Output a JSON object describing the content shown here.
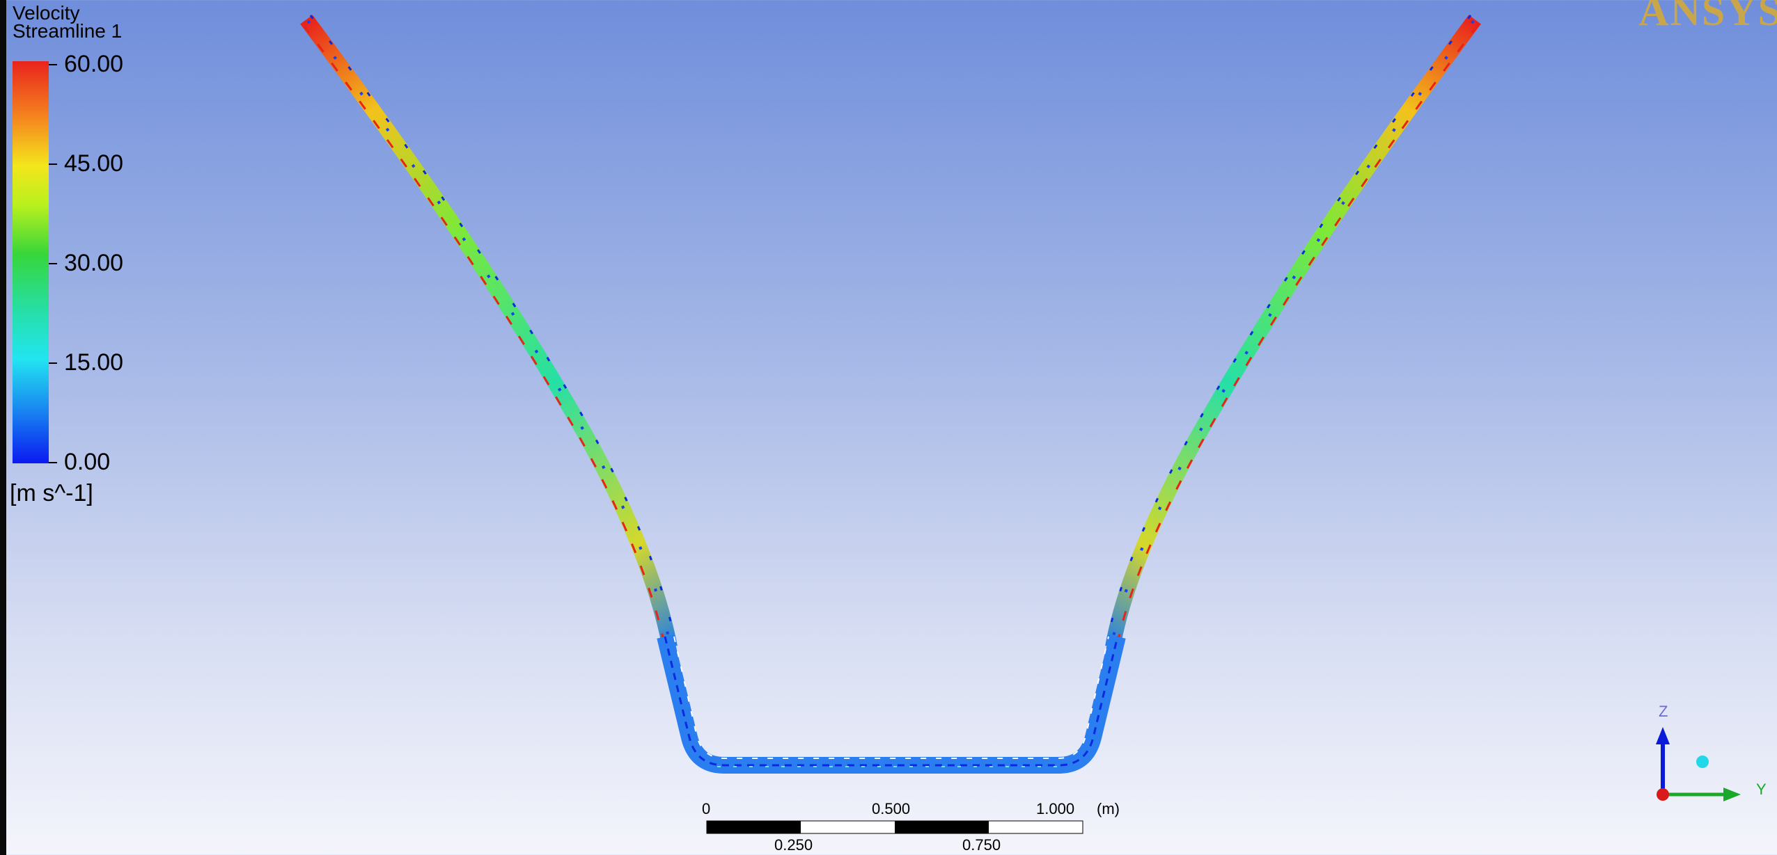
{
  "legend": {
    "title_line1": "Velocity",
    "title_line2": "Streamline 1",
    "ticks": [
      "60.00",
      "45.00",
      "30.00",
      "15.00",
      "0.00"
    ],
    "units": "[m s^-1]"
  },
  "logo": "ANSYS",
  "scale_bar": {
    "top_labels": [
      "0",
      "0.500",
      "1.000",
      "(m)"
    ],
    "bottom_labels": [
      "0.250",
      "0.750"
    ]
  },
  "triad": {
    "axis_z": "Z",
    "axis_y": "Y"
  },
  "colors": {
    "background_top": "#6f8edb",
    "background_bottom": "#f4f5fb",
    "streamline_low": "#1a4cf0",
    "streamline_high": "#e8231c",
    "logo": "#caa64a"
  }
}
